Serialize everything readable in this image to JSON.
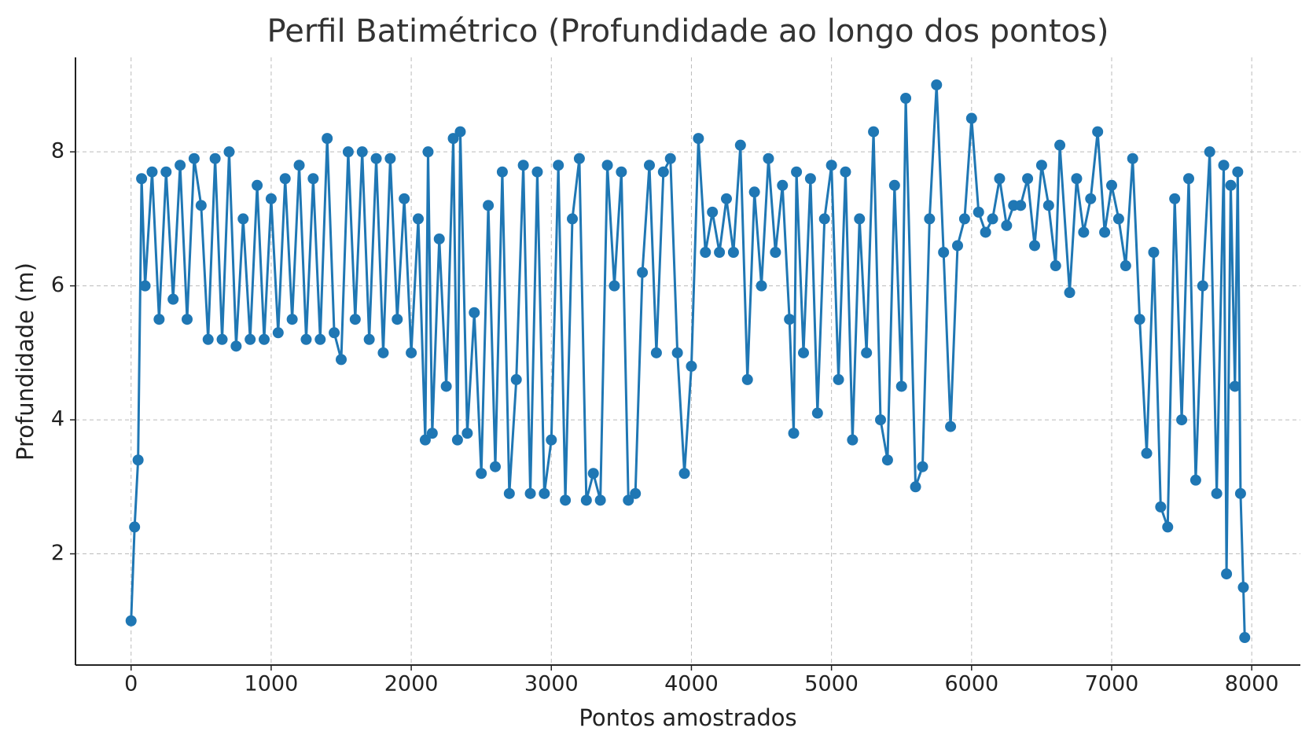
{
  "chart_data": {
    "type": "line",
    "title": "Perfil Batimétrico (Profundidade ao longo dos pontos)",
    "xlabel": "Pontos amostrados",
    "ylabel": "Profundidade (m)",
    "color": "#1f77b4",
    "marker": true,
    "grid": true,
    "x": [
      0,
      25,
      50,
      75,
      100,
      150,
      200,
      250,
      300,
      350,
      400,
      450,
      500,
      550,
      600,
      650,
      700,
      750,
      800,
      850,
      900,
      950,
      1000,
      1050,
      1100,
      1150,
      1200,
      1250,
      1300,
      1350,
      1400,
      1450,
      1500,
      1550,
      1600,
      1650,
      1700,
      1750,
      1800,
      1850,
      1900,
      1950,
      2000,
      2050,
      2100,
      2120,
      2150,
      2200,
      2250,
      2300,
      2330,
      2350,
      2400,
      2450,
      2500,
      2550,
      2600,
      2650,
      2700,
      2750,
      2800,
      2850,
      2900,
      2950,
      3000,
      3050,
      3100,
      3150,
      3200,
      3250,
      3300,
      3350,
      3400,
      3450,
      3500,
      3550,
      3600,
      3650,
      3700,
      3750,
      3800,
      3850,
      3900,
      3950,
      4000,
      4050,
      4100,
      4150,
      4200,
      4250,
      4300,
      4350,
      4400,
      4450,
      4500,
      4550,
      4600,
      4650,
      4700,
      4730,
      4750,
      4800,
      4850,
      4900,
      4950,
      5000,
      5050,
      5100,
      5150,
      5200,
      5250,
      5300,
      5350,
      5400,
      5450,
      5500,
      5530,
      5600,
      5650,
      5700,
      5750,
      5800,
      5850,
      5900,
      5950,
      6000,
      6050,
      6100,
      6150,
      6200,
      6250,
      6300,
      6350,
      6400,
      6450,
      6500,
      6550,
      6600,
      6630,
      6700,
      6750,
      6800,
      6850,
      6900,
      6950,
      7000,
      7050,
      7100,
      7150,
      7200,
      7250,
      7300,
      7350,
      7400,
      7450,
      7500,
      7550,
      7600,
      7650,
      7700,
      7750,
      7800,
      7820,
      7850,
      7880,
      7900,
      7920,
      7940,
      7950
    ],
    "values": [
      1.0,
      2.4,
      3.4,
      7.6,
      6.0,
      7.7,
      5.5,
      7.7,
      5.8,
      7.8,
      5.5,
      7.9,
      7.2,
      5.2,
      7.9,
      5.2,
      8.0,
      5.1,
      7.0,
      5.2,
      7.5,
      5.2,
      7.3,
      5.3,
      7.6,
      5.5,
      7.8,
      5.2,
      7.6,
      5.2,
      8.2,
      5.3,
      4.9,
      8.0,
      5.5,
      8.0,
      5.2,
      7.9,
      5.0,
      7.9,
      5.5,
      7.3,
      5.0,
      7.0,
      3.7,
      8.0,
      3.8,
      6.7,
      4.5,
      8.2,
      3.7,
      8.3,
      3.8,
      5.6,
      3.2,
      7.2,
      3.3,
      7.7,
      2.9,
      4.6,
      7.8,
      2.9,
      7.7,
      2.9,
      3.7,
      7.8,
      2.8,
      7.0,
      7.9,
      2.8,
      3.2,
      2.8,
      7.8,
      6.0,
      7.7,
      2.8,
      2.9,
      6.2,
      7.8,
      5.0,
      7.7,
      7.9,
      5.0,
      3.2,
      4.8,
      8.2,
      6.5,
      7.1,
      6.5,
      7.3,
      6.5,
      8.1,
      4.6,
      7.4,
      6.0,
      7.9,
      6.5,
      7.5,
      5.5,
      3.8,
      7.7,
      5.0,
      7.6,
      4.1,
      7.0,
      7.8,
      4.6,
      7.7,
      3.7,
      7.0,
      5.0,
      8.3,
      4.0,
      3.4,
      7.5,
      4.5,
      8.8,
      3.0,
      3.3,
      7.0,
      9.0,
      6.5,
      3.9,
      6.6,
      7.0,
      8.5,
      7.1,
      6.8,
      7.0,
      7.6,
      6.9,
      7.2,
      7.2,
      7.6,
      6.6,
      7.8,
      7.2,
      6.3,
      8.1,
      5.9,
      7.6,
      6.8,
      7.3,
      8.3,
      6.8,
      7.5,
      7.0,
      6.3,
      7.9,
      5.5,
      3.5,
      6.5,
      2.7,
      2.4,
      7.3,
      4.0,
      7.6,
      3.1,
      6.0,
      8.0,
      2.9,
      7.8,
      1.7,
      7.5,
      4.5,
      7.7,
      2.9,
      1.5,
      0.75
    ],
    "xlim": [
      -397,
      8347
    ],
    "ylim": [
      0.34,
      9.41
    ],
    "xticks": [
      0,
      1000,
      2000,
      3000,
      4000,
      5000,
      6000,
      7000,
      8000
    ],
    "yticks": [
      2,
      4,
      6,
      8
    ]
  }
}
